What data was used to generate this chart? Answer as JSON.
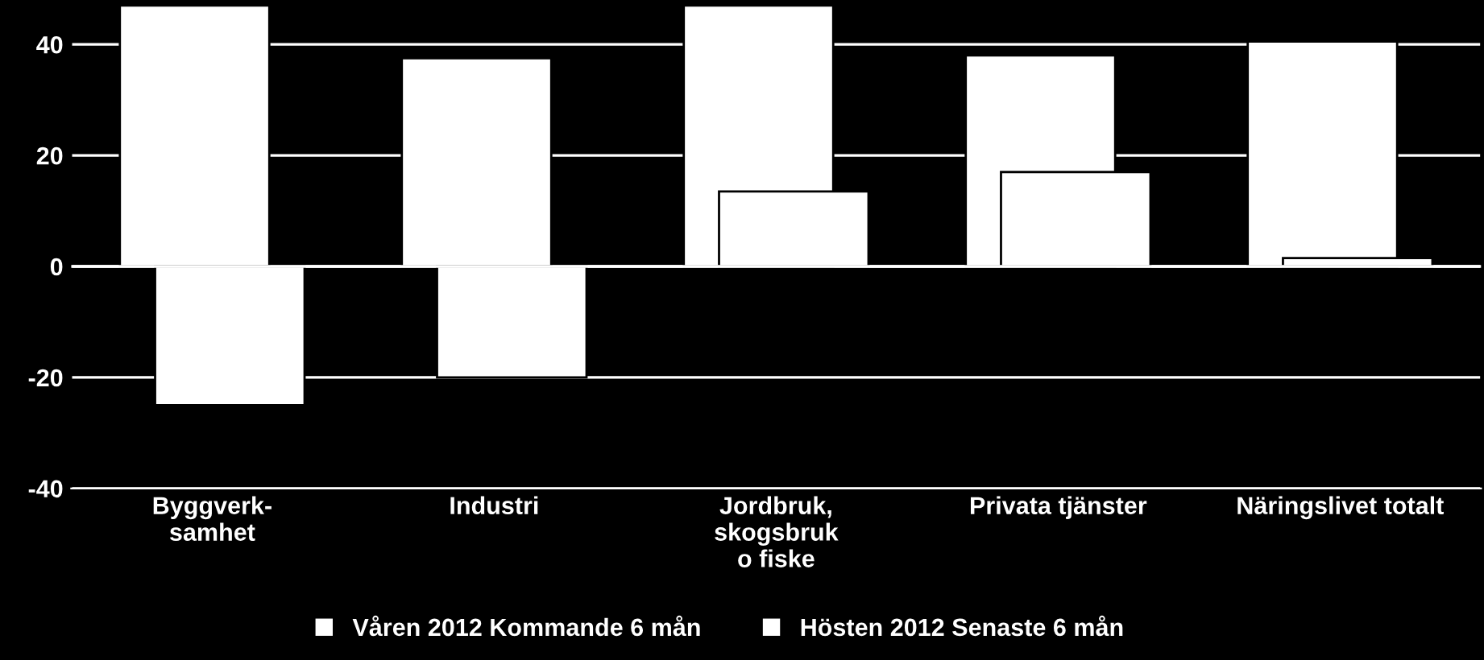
{
  "chart_data": {
    "type": "bar",
    "categories": [
      "Byggverk-\nsamhet",
      "Industri",
      "Jordbruk,\nskogsbruk\no fiske",
      "Privata tjänster",
      "Näringslivet totalt"
    ],
    "series": [
      {
        "name": "Våren 2012 Kommande 6 mån",
        "color": "#ffffff",
        "values": [
          47,
          37.5,
          47,
          38,
          40.5
        ]
      },
      {
        "name": "Hösten 2012 Senaste 6 mån",
        "color": "#ffffff",
        "values": [
          -25,
          -20,
          13.5,
          17,
          1.5
        ]
      }
    ],
    "ylim": [
      -40,
      48
    ],
    "yticks": [
      -40,
      -20,
      0,
      20,
      40
    ],
    "grid": true,
    "legend": "bottom"
  }
}
